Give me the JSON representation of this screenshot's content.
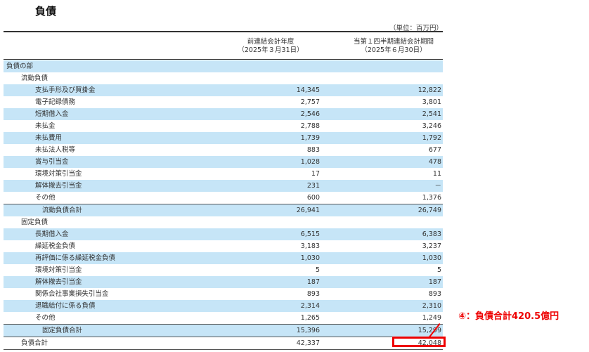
{
  "title": "負債",
  "unit": "（単位：百万円）",
  "columns": {
    "prev": {
      "line1": "前連結会計年度",
      "line2": "（2025年３月31日）"
    },
    "curr": {
      "line1": "当第１四半期連結会計期間",
      "line2": "（2025年６月30日）"
    }
  },
  "rows": [
    {
      "label": "負債の部",
      "level": 0,
      "shade": true,
      "prev": "",
      "curr": ""
    },
    {
      "label": "流動負債",
      "level": 1,
      "shade": false,
      "prev": "",
      "curr": ""
    },
    {
      "label": "支払手形及び買掛金",
      "level": 2,
      "shade": true,
      "prev": "14,345",
      "curr": "12,822"
    },
    {
      "label": "電子記録債務",
      "level": 2,
      "shade": false,
      "prev": "2,757",
      "curr": "3,801"
    },
    {
      "label": "短期借入金",
      "level": 2,
      "shade": true,
      "prev": "2,546",
      "curr": "2,541"
    },
    {
      "label": "未払金",
      "level": 2,
      "shade": false,
      "prev": "2,788",
      "curr": "3,246"
    },
    {
      "label": "未払費用",
      "level": 2,
      "shade": true,
      "prev": "1,739",
      "curr": "1,792"
    },
    {
      "label": "未払法人税等",
      "level": 2,
      "shade": false,
      "prev": "883",
      "curr": "677"
    },
    {
      "label": "賞与引当金",
      "level": 2,
      "shade": true,
      "prev": "1,028",
      "curr": "478"
    },
    {
      "label": "環境対策引当金",
      "level": 2,
      "shade": false,
      "prev": "17",
      "curr": "11"
    },
    {
      "label": "解体撤去引当金",
      "level": 2,
      "shade": true,
      "prev": "231",
      "curr": "－"
    },
    {
      "label": "その他",
      "level": 2,
      "shade": false,
      "prev": "600",
      "curr": "1,376"
    },
    {
      "label": "流動負債合計",
      "level": 3,
      "shade": true,
      "sub": true,
      "prev": "26,941",
      "curr": "26,749"
    },
    {
      "label": "固定負債",
      "level": 1,
      "shade": false,
      "prev": "",
      "curr": ""
    },
    {
      "label": "長期借入金",
      "level": 2,
      "shade": true,
      "prev": "6,515",
      "curr": "6,383"
    },
    {
      "label": "繰延税金負債",
      "level": 2,
      "shade": false,
      "prev": "3,183",
      "curr": "3,237"
    },
    {
      "label": "再評価に係る繰延税金負債",
      "level": 2,
      "shade": true,
      "prev": "1,030",
      "curr": "1,030"
    },
    {
      "label": "環境対策引当金",
      "level": 2,
      "shade": false,
      "prev": "5",
      "curr": "5"
    },
    {
      "label": "解体撤去引当金",
      "level": 2,
      "shade": true,
      "prev": "187",
      "curr": "187"
    },
    {
      "label": "関係会社事業損失引当金",
      "level": 2,
      "shade": false,
      "prev": "893",
      "curr": "893"
    },
    {
      "label": "退職給付に係る負債",
      "level": 2,
      "shade": true,
      "prev": "2,314",
      "curr": "2,310"
    },
    {
      "label": "その他",
      "level": 2,
      "shade": false,
      "prev": "1,265",
      "curr": "1,249"
    },
    {
      "label": "固定負債合計",
      "level": 3,
      "shade": true,
      "sub": true,
      "prev": "15,396",
      "curr": "15,299"
    },
    {
      "label": "負債合計",
      "level": 1,
      "shade": false,
      "grand": true,
      "prev": "42,337",
      "curr": "42,048"
    }
  ],
  "callout": {
    "text": "④：負債合計420.5億円",
    "color": "#ee0000"
  },
  "colors": {
    "row_shade": "#c6e5f7",
    "accent": "#ee0000"
  }
}
